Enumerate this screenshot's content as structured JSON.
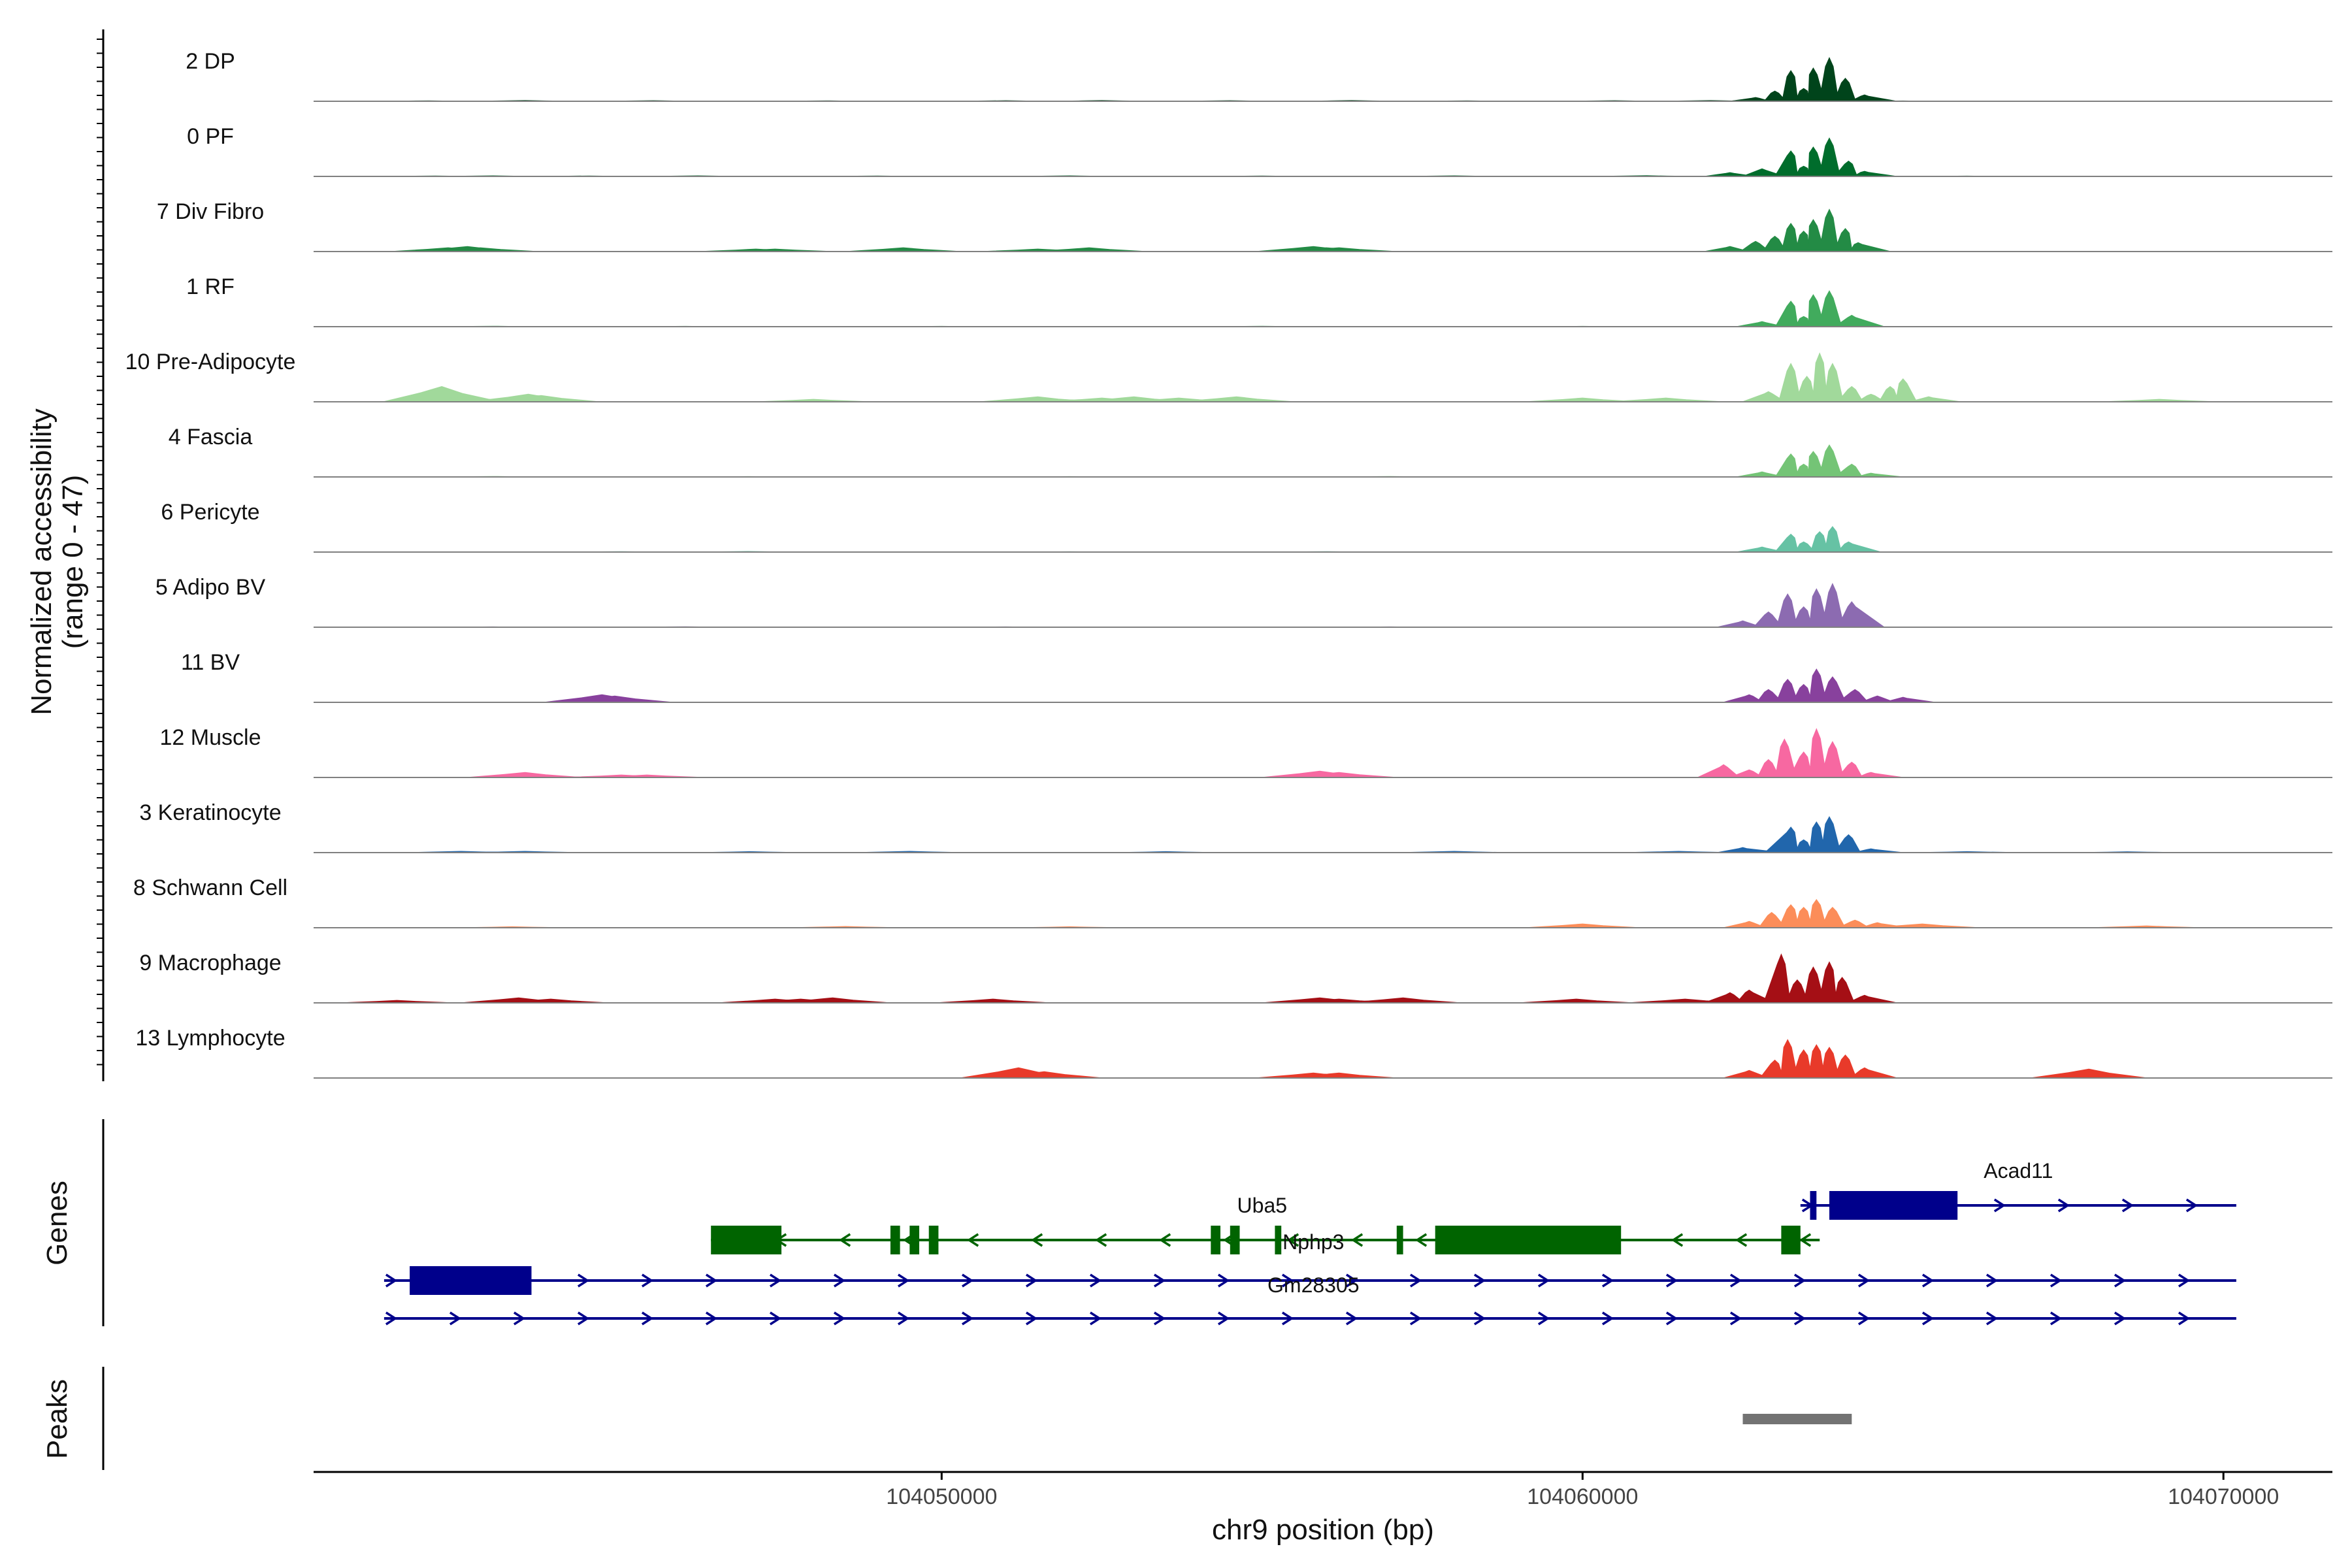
{
  "chart_data": {
    "type": "area",
    "title": "",
    "chromosome": "chr9",
    "xlabel": "chr9 position (bp)",
    "ylabel_line1": "Normalized accessibility",
    "ylabel_line2": "(range 0 - 47)",
    "y_range": [
      0,
      47
    ],
    "xlim": [
      104040200,
      104071700
    ],
    "x_ticks": [
      104050000,
      104060000,
      104070000
    ],
    "x_tick_labels": [
      "104050000",
      "104060000",
      "104070000"
    ],
    "baseline_color": "#808080",
    "tracks": [
      {
        "name": "2 DP",
        "color": "#00441b",
        "background": [
          [
            104042000,
            0.4
          ],
          [
            104043500,
            0.6
          ],
          [
            104045500,
            0.5
          ],
          [
            104048200,
            0.4
          ],
          [
            104051000,
            0.5
          ],
          [
            104052500,
            0.6
          ],
          [
            104054500,
            0.5
          ],
          [
            104056400,
            0.6
          ],
          [
            104058200,
            0.4
          ],
          [
            104060500,
            0.5
          ],
          [
            104062000,
            0.6
          ],
          [
            104065000,
            0.3
          ]
        ],
        "peaks": [
          [
            104062700,
            3
          ],
          [
            104063000,
            8
          ],
          [
            104063250,
            24
          ],
          [
            104063450,
            10
          ],
          [
            104063600,
            26
          ],
          [
            104063850,
            34
          ],
          [
            104064100,
            18
          ],
          [
            104064400,
            5
          ]
        ]
      },
      {
        "name": "0 PF",
        "color": "#006d2c",
        "background": [
          [
            104042100,
            0.4
          ],
          [
            104043000,
            0.5
          ],
          [
            104044500,
            0.4
          ],
          [
            104046200,
            0.5
          ],
          [
            104049000,
            0.4
          ],
          [
            104052000,
            0.5
          ],
          [
            104055000,
            0.4
          ],
          [
            104058000,
            0.5
          ],
          [
            104061000,
            0.6
          ],
          [
            104066000,
            0.3
          ]
        ],
        "peaks": [
          [
            104062300,
            3
          ],
          [
            104062800,
            6
          ],
          [
            104063250,
            20
          ],
          [
            104063450,
            8
          ],
          [
            104063600,
            23
          ],
          [
            104063850,
            30
          ],
          [
            104064150,
            12
          ],
          [
            104064400,
            4
          ]
        ]
      },
      {
        "name": "7 Div Fibro",
        "color": "#238b45",
        "background": [
          [
            104042300,
            3
          ],
          [
            104042600,
            4
          ],
          [
            104042800,
            3
          ],
          [
            104047100,
            2
          ],
          [
            104047400,
            2
          ],
          [
            104049400,
            3
          ],
          [
            104051500,
            2
          ],
          [
            104052300,
            3
          ],
          [
            104055800,
            4
          ],
          [
            104056000,
            3
          ],
          [
            104056200,
            3
          ]
        ],
        "peaks": [
          [
            104062300,
            4
          ],
          [
            104062700,
            8
          ],
          [
            104063000,
            12
          ],
          [
            104063250,
            22
          ],
          [
            104063450,
            16
          ],
          [
            104063600,
            25
          ],
          [
            104063850,
            33
          ],
          [
            104064100,
            18
          ],
          [
            104064300,
            7
          ]
        ]
      },
      {
        "name": "1 RF",
        "color": "#41ab5d",
        "background": [
          [
            104043000,
            0.4
          ],
          [
            104046000,
            0.3
          ],
          [
            104050000,
            0.3
          ],
          [
            104055000,
            0.4
          ],
          [
            104060000,
            0.3
          ]
        ],
        "peaks": [
          [
            104062800,
            4
          ],
          [
            104063250,
            20
          ],
          [
            104063450,
            8
          ],
          [
            104063600,
            25
          ],
          [
            104063850,
            28
          ],
          [
            104064200,
            9
          ]
        ]
      },
      {
        "name": "10 Pre-Adipocyte",
        "color": "#a1d99b",
        "background": [
          [
            104042200,
            12
          ],
          [
            104042550,
            4
          ],
          [
            104043550,
            6
          ],
          [
            104043750,
            5
          ],
          [
            104048000,
            2
          ],
          [
            104051500,
            4
          ],
          [
            104052500,
            3
          ],
          [
            104053000,
            4
          ],
          [
            104053700,
            3
          ],
          [
            104054600,
            4
          ],
          [
            104060000,
            3
          ],
          [
            104061300,
            3
          ],
          [
            104069000,
            2
          ]
        ],
        "peaks": [
          [
            104062900,
            8
          ],
          [
            104063250,
            30
          ],
          [
            104063500,
            20
          ],
          [
            104063700,
            38
          ],
          [
            104063900,
            30
          ],
          [
            104064200,
            12
          ],
          [
            104064500,
            6
          ],
          [
            104064800,
            12
          ],
          [
            104065000,
            18
          ],
          [
            104065400,
            4
          ]
        ]
      },
      {
        "name": "4 Fascia",
        "color": "#74c476",
        "background": [
          [
            104043000,
            0.4
          ],
          [
            104047000,
            0.3
          ],
          [
            104052000,
            0.3
          ],
          [
            104057000,
            0.4
          ]
        ],
        "peaks": [
          [
            104062800,
            4
          ],
          [
            104063250,
            18
          ],
          [
            104063450,
            10
          ],
          [
            104063600,
            20
          ],
          [
            104063850,
            25
          ],
          [
            104064200,
            10
          ],
          [
            104064500,
            3
          ]
        ]
      },
      {
        "name": "6 Pericyte",
        "color": "#66c2a4",
        "background": [
          [
            104045000,
            0.4
          ],
          [
            104047000,
            0.5
          ],
          [
            104052000,
            0.3
          ],
          [
            104056000,
            0.4
          ]
        ],
        "peaks": [
          [
            104062800,
            4
          ],
          [
            104063250,
            14
          ],
          [
            104063450,
            8
          ],
          [
            104063700,
            16
          ],
          [
            104063900,
            20
          ],
          [
            104064150,
            8
          ]
        ]
      },
      {
        "name": "5 Adipo BV",
        "color": "#8c6bb1",
        "background": [
          [
            104043000,
            0.3
          ],
          [
            104046000,
            0.4
          ],
          [
            104051000,
            0.3
          ],
          [
            104057000,
            0.3
          ]
        ],
        "peaks": [
          [
            104062500,
            5
          ],
          [
            104062900,
            12
          ],
          [
            104063200,
            26
          ],
          [
            104063450,
            16
          ],
          [
            104063650,
            30
          ],
          [
            104063900,
            34
          ],
          [
            104064200,
            20
          ]
        ]
      },
      {
        "name": "11 BV",
        "color": "#88419d",
        "background": [
          [
            104044700,
            6
          ],
          [
            104044900,
            5
          ]
        ],
        "peaks": [
          [
            104062600,
            6
          ],
          [
            104062900,
            10
          ],
          [
            104063200,
            18
          ],
          [
            104063450,
            14
          ],
          [
            104063650,
            26
          ],
          [
            104063900,
            20
          ],
          [
            104064250,
            10
          ],
          [
            104064600,
            5
          ],
          [
            104065000,
            4
          ]
        ]
      },
      {
        "name": "12 Muscle",
        "color": "#f768a1",
        "background": [
          [
            104043500,
            4
          ],
          [
            104045000,
            2
          ],
          [
            104045400,
            2
          ],
          [
            104055900,
            5
          ],
          [
            104056200,
            4
          ]
        ],
        "peaks": [
          [
            104062200,
            10
          ],
          [
            104062600,
            6
          ],
          [
            104062900,
            14
          ],
          [
            104063150,
            30
          ],
          [
            104063450,
            20
          ],
          [
            104063650,
            38
          ],
          [
            104063900,
            28
          ],
          [
            104064200,
            12
          ],
          [
            104064500,
            4
          ]
        ]
      },
      {
        "name": "3 Keratinocyte",
        "color": "#2166ac",
        "background": [
          [
            104042500,
            1
          ],
          [
            104043500,
            1
          ],
          [
            104047000,
            0.8
          ],
          [
            104049500,
            1
          ],
          [
            104053500,
            0.8
          ],
          [
            104058000,
            1
          ],
          [
            104061500,
            1
          ],
          [
            104066000,
            0.8
          ],
          [
            104068500,
            0.7
          ]
        ],
        "peaks": [
          [
            104062500,
            4
          ],
          [
            104063250,
            20
          ],
          [
            104063450,
            10
          ],
          [
            104063650,
            24
          ],
          [
            104063850,
            28
          ],
          [
            104064150,
            14
          ],
          [
            104064500,
            3
          ]
        ]
      },
      {
        "name": "8 Schwann Cell",
        "color": "#fc8d59",
        "background": [
          [
            104043300,
            0.8
          ],
          [
            104048500,
            1
          ],
          [
            104052000,
            0.8
          ],
          [
            104060000,
            3
          ],
          [
            104065300,
            3
          ],
          [
            104068800,
            1.5
          ]
        ],
        "peaks": [
          [
            104062600,
            5
          ],
          [
            104062950,
            12
          ],
          [
            104063250,
            18
          ],
          [
            104063450,
            16
          ],
          [
            104063650,
            22
          ],
          [
            104063900,
            16
          ],
          [
            104064250,
            6
          ],
          [
            104064600,
            4
          ]
        ]
      },
      {
        "name": "9 Macrophage",
        "color": "#a50f15",
        "background": [
          [
            104041500,
            2
          ],
          [
            104043400,
            4
          ],
          [
            104043900,
            3
          ],
          [
            104047400,
            3
          ],
          [
            104047800,
            3
          ],
          [
            104048300,
            4
          ],
          [
            104050800,
            3
          ],
          [
            104055900,
            4
          ],
          [
            104056200,
            3
          ],
          [
            104057200,
            4
          ],
          [
            104059900,
            3
          ],
          [
            104061600,
            3
          ]
        ],
        "peaks": [
          [
            104062300,
            8
          ],
          [
            104062600,
            10
          ],
          [
            104063100,
            38
          ],
          [
            104063350,
            18
          ],
          [
            104063600,
            28
          ],
          [
            104063850,
            32
          ],
          [
            104064050,
            20
          ],
          [
            104064400,
            6
          ]
        ]
      },
      {
        "name": "13 Lymphocyte",
        "color": "#e83a2a",
        "background": [
          [
            104051200,
            8
          ],
          [
            104051600,
            5
          ],
          [
            104055800,
            4
          ],
          [
            104056200,
            4
          ],
          [
            104067900,
            7
          ]
        ],
        "peaks": [
          [
            104062600,
            6
          ],
          [
            104063000,
            14
          ],
          [
            104063200,
            30
          ],
          [
            104063450,
            22
          ],
          [
            104063650,
            26
          ],
          [
            104063850,
            24
          ],
          [
            104064100,
            18
          ],
          [
            104064400,
            8
          ]
        ]
      }
    ],
    "genes_track_label": "Genes",
    "peaks_track_label": "Peaks",
    "genes": [
      {
        "name": "Acad11",
        "strand": "+",
        "color": "#00008b",
        "start": 104063400,
        "end": 104070200,
        "exons": [
          [
            104063550,
            104063650
          ],
          [
            104063850,
            104065850
          ]
        ]
      },
      {
        "name": "Uba5",
        "strand": "-",
        "color": "#006400",
        "start": 104046400,
        "end": 104063700,
        "exons": [
          [
            104046400,
            104047500
          ],
          [
            104049200,
            104049350
          ],
          [
            104049500,
            104049650
          ],
          [
            104049800,
            104049950
          ],
          [
            104054200,
            104054350
          ],
          [
            104054500,
            104054650
          ],
          [
            104055200,
            104055300
          ],
          [
            104057100,
            104057200
          ],
          [
            104057700,
            104060600
          ],
          [
            104063100,
            104063400
          ]
        ]
      },
      {
        "name": "Nphp3",
        "strand": "+",
        "color": "#00008b",
        "start": 104041300,
        "end": 104070200,
        "exons": [
          [
            104041700,
            104043600
          ]
        ]
      },
      {
        "name": "Gm28305",
        "strand": "+",
        "color": "#00008b",
        "start": 104041300,
        "end": 104070200,
        "exons": []
      }
    ],
    "peak_regions": [
      [
        104062500,
        104064200
      ]
    ],
    "peak_color": "#737373"
  }
}
